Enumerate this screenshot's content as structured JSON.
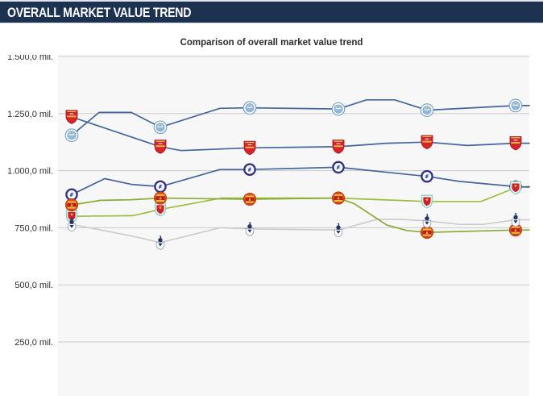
{
  "header": {
    "title": "OVERALL MARKET VALUE TREND"
  },
  "chart_data": {
    "type": "line",
    "title": "Comparison of overall market value trend",
    "value_unit": "mil.",
    "y_axis": {
      "grid": true,
      "ticks": [
        {
          "label": "1.500,0 mil.",
          "value": 1500
        },
        {
          "label": "1.250,0 mil.",
          "value": 1250
        },
        {
          "label": "1.000,0 mil.",
          "value": 1000
        },
        {
          "label": "750,0 mil.",
          "value": 750
        },
        {
          "label": "500,0 mil.",
          "value": 500
        },
        {
          "label": "250,0 mil.",
          "value": 250
        }
      ]
    },
    "x_axis": {
      "tick_labels_visible": false,
      "logo_point_count": 6
    },
    "legend": {
      "visible": false,
      "markers": "club crest icons on data points"
    },
    "colors": {
      "plot_bg": "#f7f7f7",
      "grid": "#cbcbcb",
      "axis_label": "#2e2e2e",
      "header_bg": "#1d3150"
    },
    "series": [
      {
        "name": "Tottenham Hotspur",
        "crest": "tottenham",
        "line_color": "#cdcdcd",
        "values_at_logo_points": [
          765,
          685,
          745,
          740,
          780,
          785
        ],
        "points": [
          [
            89,
            765,
            1
          ],
          [
            165,
            713,
            0
          ],
          [
            199,
            685,
            1
          ],
          [
            273,
            750,
            0
          ],
          [
            310,
            745,
            1
          ],
          [
            420,
            740,
            1
          ],
          [
            468,
            787,
            0
          ],
          [
            495,
            787,
            0
          ],
          [
            530,
            780,
            1
          ],
          [
            570,
            765,
            0
          ],
          [
            600,
            765,
            0
          ],
          [
            640,
            785,
            1
          ],
          [
            657,
            785,
            0
          ]
        ]
      },
      {
        "name": "Liverpool FC",
        "crest": "liverpool",
        "line_color": "#9dbe3f",
        "values_at_logo_points": [
          800,
          830,
          880,
          880,
          865,
          925
        ],
        "points": [
          [
            89,
            800,
            1
          ],
          [
            165,
            803,
            0
          ],
          [
            199,
            830,
            1
          ],
          [
            275,
            880,
            0
          ],
          [
            310,
            880,
            0
          ],
          [
            420,
            880,
            0
          ],
          [
            530,
            865,
            1
          ],
          [
            597,
            865,
            0
          ],
          [
            640,
            925,
            1
          ],
          [
            657,
            931,
            0
          ]
        ]
      },
      {
        "name": "Manchester United",
        "crest": "manutd",
        "line_color": "#8cab38",
        "values_at_logo_points": [
          850,
          880,
          875,
          880,
          730,
          740
        ],
        "points": [
          [
            89,
            850,
            1
          ],
          [
            125,
            870,
            0
          ],
          [
            163,
            873,
            0
          ],
          [
            199,
            880,
            1
          ],
          [
            310,
            875,
            1
          ],
          [
            420,
            880,
            1
          ],
          [
            440,
            855,
            0
          ],
          [
            480,
            762,
            0
          ],
          [
            505,
            738,
            0
          ],
          [
            530,
            730,
            1
          ],
          [
            640,
            740,
            1
          ],
          [
            657,
            740,
            0
          ]
        ]
      },
      {
        "name": "Chelsea FC",
        "crest": "chelsea",
        "line_color": "#45659b",
        "values_at_logo_points": [
          895,
          930,
          1005,
          1015,
          975,
          930
        ],
        "points": [
          [
            89,
            895,
            1
          ],
          [
            130,
            965,
            0
          ],
          [
            163,
            940,
            0
          ],
          [
            199,
            930,
            1
          ],
          [
            273,
            1005,
            0
          ],
          [
            310,
            1005,
            1
          ],
          [
            420,
            1015,
            1
          ],
          [
            530,
            975,
            1
          ],
          [
            570,
            953,
            0
          ],
          [
            640,
            930,
            1
          ],
          [
            657,
            928,
            0
          ]
        ]
      },
      {
        "name": "Arsenal FC",
        "crest": "arsenal",
        "line_color": "#45659b",
        "values_at_logo_points": [
          1235,
          1105,
          1100,
          1105,
          1125,
          1120
        ],
        "points": [
          [
            89,
            1235,
            1
          ],
          [
            199,
            1105,
            1
          ],
          [
            225,
            1088,
            0
          ],
          [
            310,
            1100,
            1
          ],
          [
            420,
            1105,
            1
          ],
          [
            480,
            1120,
            0
          ],
          [
            530,
            1125,
            1
          ],
          [
            580,
            1110,
            0
          ],
          [
            640,
            1120,
            1
          ],
          [
            657,
            1120,
            0
          ]
        ]
      },
      {
        "name": "Manchester City",
        "crest": "mancity",
        "line_color": "#45659b",
        "values_at_logo_points": [
          1155,
          1190,
          1275,
          1270,
          1265,
          1285
        ],
        "points": [
          [
            89,
            1155,
            1
          ],
          [
            123,
            1255,
            0
          ],
          [
            163,
            1255,
            0
          ],
          [
            199,
            1190,
            1
          ],
          [
            273,
            1273,
            0
          ],
          [
            310,
            1275,
            1
          ],
          [
            420,
            1270,
            1
          ],
          [
            455,
            1310,
            0
          ],
          [
            490,
            1310,
            0
          ],
          [
            530,
            1265,
            1
          ],
          [
            640,
            1285,
            1
          ],
          [
            657,
            1285,
            0
          ]
        ]
      }
    ]
  }
}
